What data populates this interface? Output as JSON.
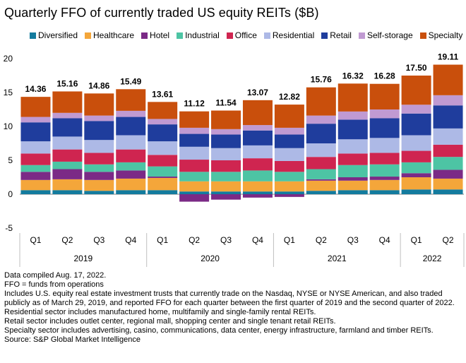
{
  "title": "Quarterly FFO of currently traded US equity REITs ($B)",
  "colors": {
    "Diversified": "#137b9e",
    "Healthcare": "#f4a63a",
    "Hotel": "#7b2a86",
    "Industrial": "#4dc4a4",
    "Office": "#cf2550",
    "Residential": "#adb9e6",
    "Retail": "#1f3d9d",
    "Self-storage": "#c09ad2",
    "Specialty": "#c94f0c"
  },
  "notes": [
    "Data compiled Aug. 17, 2022.",
    "FFO = funds from operations",
    "Includes U.S. equity real estate investment trusts that currently trade on the Nasdaq, NYSE or NYSE American, and also traded publicly as of March 29, 2019, and reported FFO for each quarter between the first quarter of 2019 and the second quarter of 2022.",
    "Residential sector includes manufactured home, multifamily and single-family rental REITs.",
    "Retail sector includes outlet center, regional mall, shopping center and single tenant retail REITs.",
    "Specialty sector includes advertising, casino, communications, data center, energy infrastructure, farmland and timber REITs.",
    "Source: S&P Global Market Intelligence"
  ],
  "chart_data": {
    "type": "bar",
    "stacked": true,
    "ylim": [
      -5,
      20
    ],
    "yticks": [
      -5,
      0,
      5,
      10,
      15,
      20
    ],
    "grid": false,
    "legend_position": "top",
    "categories": [
      "Q1",
      "Q2",
      "Q3",
      "Q4",
      "Q1",
      "Q2",
      "Q3",
      "Q4",
      "Q1",
      "Q2",
      "Q3",
      "Q4",
      "Q1",
      "Q2"
    ],
    "years": [
      {
        "label": "2019",
        "count": 4
      },
      {
        "label": "2020",
        "count": 4
      },
      {
        "label": "2021",
        "count": 4
      },
      {
        "label": "2022",
        "count": 2
      }
    ],
    "totals": [
      "14.36",
      "15.16",
      "14.86",
      "15.49",
      "13.61",
      "11.12",
      "11.54",
      "13.07",
      "12.82",
      "15.76",
      "16.32",
      "16.28",
      "17.50",
      "19.11"
    ],
    "series": [
      {
        "name": "Diversified",
        "values": [
          0.6,
          0.6,
          0.5,
          0.6,
          0.6,
          0.4,
          0.4,
          0.4,
          0.4,
          0.5,
          0.6,
          0.6,
          0.7,
          0.7
        ]
      },
      {
        "name": "Healthcare",
        "values": [
          1.5,
          1.6,
          1.6,
          1.7,
          1.8,
          1.5,
          1.5,
          1.5,
          1.5,
          1.5,
          1.4,
          1.5,
          1.8,
          1.6
        ]
      },
      {
        "name": "Hotel",
        "values": [
          1.2,
          1.5,
          1.2,
          1.2,
          0.2,
          -1.1,
          -0.8,
          -0.5,
          -0.4,
          0.2,
          0.5,
          0.5,
          0.6,
          1.3
        ]
      },
      {
        "name": "Industrial",
        "values": [
          1.0,
          1.1,
          1.1,
          1.2,
          1.5,
          1.4,
          1.4,
          1.6,
          1.4,
          1.5,
          1.8,
          1.8,
          1.6,
          1.9
        ]
      },
      {
        "name": "Office",
        "values": [
          1.7,
          1.8,
          1.7,
          1.9,
          1.7,
          1.8,
          1.7,
          1.8,
          1.6,
          1.8,
          1.7,
          1.7,
          1.7,
          1.8
        ]
      },
      {
        "name": "Residential",
        "values": [
          1.8,
          1.9,
          1.9,
          2.1,
          2.0,
          1.9,
          1.8,
          1.9,
          1.9,
          2.0,
          2.1,
          2.2,
          2.3,
          2.4
        ]
      },
      {
        "name": "Retail",
        "values": [
          2.8,
          2.7,
          2.8,
          2.7,
          2.5,
          1.9,
          2.0,
          2.2,
          2.0,
          2.9,
          2.9,
          2.9,
          3.2,
          3.4
        ]
      },
      {
        "name": "Self-storage",
        "values": [
          0.8,
          0.8,
          0.8,
          0.9,
          0.8,
          0.9,
          0.8,
          0.8,
          1.0,
          1.2,
          1.2,
          1.3,
          1.3,
          1.5
        ]
      },
      {
        "name": "Specialty",
        "values": [
          2.96,
          3.16,
          3.26,
          3.19,
          2.51,
          2.42,
          2.74,
          3.67,
          3.42,
          4.16,
          4.12,
          3.78,
          4.3,
          4.51
        ]
      }
    ]
  }
}
